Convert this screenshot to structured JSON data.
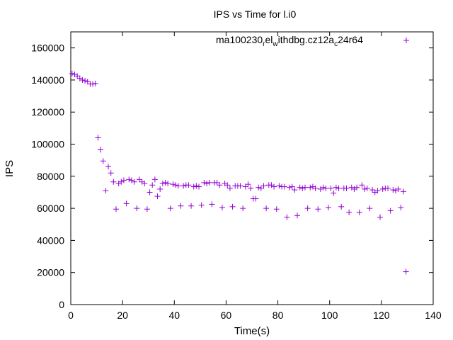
{
  "chart_data": {
    "type": "scatter",
    "title": "IPS vs Time for l.i0",
    "xlabel": "Time(s)",
    "ylabel": "IPS",
    "xlim": [
      0,
      140
    ],
    "ylim": [
      0,
      170000
    ],
    "xticks": [
      0,
      20,
      40,
      60,
      80,
      100,
      120,
      140
    ],
    "yticks": [
      0,
      20000,
      40000,
      60000,
      80000,
      100000,
      120000,
      140000,
      160000
    ],
    "grid": false,
    "legend_position": "top-right",
    "marker": "plus",
    "color": "#9400d3",
    "legend": {
      "base": "ma100230",
      "sub1": "r",
      "mid1": "el",
      "sub2": "w",
      "mid2": "ithdbg.cz12a",
      "sub3": "c",
      "tail": "24r64"
    },
    "series": [
      {
        "name": "ma100230_rel_withdbg.cz12a_c24r64",
        "points": [
          [
            0.5,
            144000
          ],
          [
            1.5,
            143500
          ],
          [
            2.5,
            142500
          ],
          [
            3.5,
            141000
          ],
          [
            4.5,
            140000
          ],
          [
            5.5,
            139500
          ],
          [
            6.5,
            139000
          ],
          [
            7.5,
            137500
          ],
          [
            8.5,
            137500
          ],
          [
            9.5,
            137800
          ],
          [
            10.5,
            104000
          ],
          [
            11.5,
            96500
          ],
          [
            12.5,
            89500
          ],
          [
            13.5,
            71000
          ],
          [
            14.5,
            86000
          ],
          [
            15.5,
            82000
          ],
          [
            16.5,
            76500
          ],
          [
            17.5,
            59500
          ],
          [
            18.5,
            75500
          ],
          [
            19.5,
            76500
          ],
          [
            20.5,
            77500
          ],
          [
            21.5,
            63000
          ],
          [
            22.5,
            78000
          ],
          [
            23.5,
            77500
          ],
          [
            24.5,
            76500
          ],
          [
            25.5,
            60000
          ],
          [
            26.5,
            78000
          ],
          [
            27.5,
            76500
          ],
          [
            28.5,
            75500
          ],
          [
            29.5,
            59500
          ],
          [
            30.5,
            70000
          ],
          [
            31.5,
            74500
          ],
          [
            32.5,
            78000
          ],
          [
            33.5,
            67500
          ],
          [
            34.5,
            72000
          ],
          [
            35.5,
            75500
          ],
          [
            36.5,
            76000
          ],
          [
            37.5,
            75500
          ],
          [
            38.5,
            60000
          ],
          [
            39.5,
            75000
          ],
          [
            40.5,
            74500
          ],
          [
            41.5,
            74000
          ],
          [
            42.5,
            61500
          ],
          [
            43.5,
            74000
          ],
          [
            44.5,
            74500
          ],
          [
            45.5,
            74500
          ],
          [
            46.5,
            61500
          ],
          [
            47.5,
            73500
          ],
          [
            48.5,
            74000
          ],
          [
            49.5,
            73500
          ],
          [
            50.5,
            62000
          ],
          [
            51.5,
            76000
          ],
          [
            52.5,
            75500
          ],
          [
            53.5,
            76000
          ],
          [
            54.5,
            62500
          ],
          [
            55.5,
            76000
          ],
          [
            56.5,
            76000
          ],
          [
            57.5,
            74500
          ],
          [
            58.5,
            60500
          ],
          [
            59.5,
            75500
          ],
          [
            60.5,
            74500
          ],
          [
            61.5,
            72500
          ],
          [
            62.5,
            61000
          ],
          [
            63.5,
            74000
          ],
          [
            64.5,
            74000
          ],
          [
            65.5,
            74000
          ],
          [
            66.5,
            60000
          ],
          [
            67.5,
            73500
          ],
          [
            68.5,
            75000
          ],
          [
            69.5,
            72500
          ],
          [
            70.5,
            66000
          ],
          [
            71.5,
            66000
          ],
          [
            72.5,
            73000
          ],
          [
            73.5,
            72500
          ],
          [
            74.5,
            74000
          ],
          [
            75.5,
            60000
          ],
          [
            76.5,
            74500
          ],
          [
            77.5,
            74500
          ],
          [
            78.5,
            73500
          ],
          [
            79.5,
            59500
          ],
          [
            80.5,
            74000
          ],
          [
            81.5,
            73500
          ],
          [
            82.5,
            73500
          ],
          [
            83.5,
            54500
          ],
          [
            84.5,
            73000
          ],
          [
            85.5,
            73500
          ],
          [
            86.5,
            71500
          ],
          [
            87.5,
            55500
          ],
          [
            88.5,
            73000
          ],
          [
            89.5,
            72500
          ],
          [
            90.5,
            73000
          ],
          [
            91.5,
            60000
          ],
          [
            92.5,
            73000
          ],
          [
            93.5,
            73500
          ],
          [
            94.5,
            72500
          ],
          [
            95.5,
            59500
          ],
          [
            96.5,
            72000
          ],
          [
            97.5,
            73000
          ],
          [
            98.5,
            72500
          ],
          [
            99.5,
            60500
          ],
          [
            100.5,
            72500
          ],
          [
            101.5,
            69500
          ],
          [
            102.5,
            73000
          ],
          [
            103.5,
            72500
          ],
          [
            104.5,
            61000
          ],
          [
            105.5,
            72500
          ],
          [
            106.5,
            72500
          ],
          [
            107.5,
            57500
          ],
          [
            108.5,
            73000
          ],
          [
            109.5,
            72000
          ],
          [
            110.5,
            73000
          ],
          [
            111.5,
            57500
          ],
          [
            112.5,
            74500
          ],
          [
            113.5,
            72000
          ],
          [
            114.5,
            72500
          ],
          [
            115.5,
            60000
          ],
          [
            116.5,
            71500
          ],
          [
            117.5,
            70000
          ],
          [
            118.5,
            71000
          ],
          [
            119.5,
            54500
          ],
          [
            120.5,
            72000
          ],
          [
            121.5,
            72500
          ],
          [
            122.5,
            72500
          ],
          [
            123.5,
            58500
          ],
          [
            124.5,
            71500
          ],
          [
            125.5,
            71000
          ],
          [
            126.5,
            72000
          ],
          [
            127.5,
            60500
          ],
          [
            128.5,
            70500
          ],
          [
            129.5,
            20500
          ]
        ]
      }
    ]
  }
}
